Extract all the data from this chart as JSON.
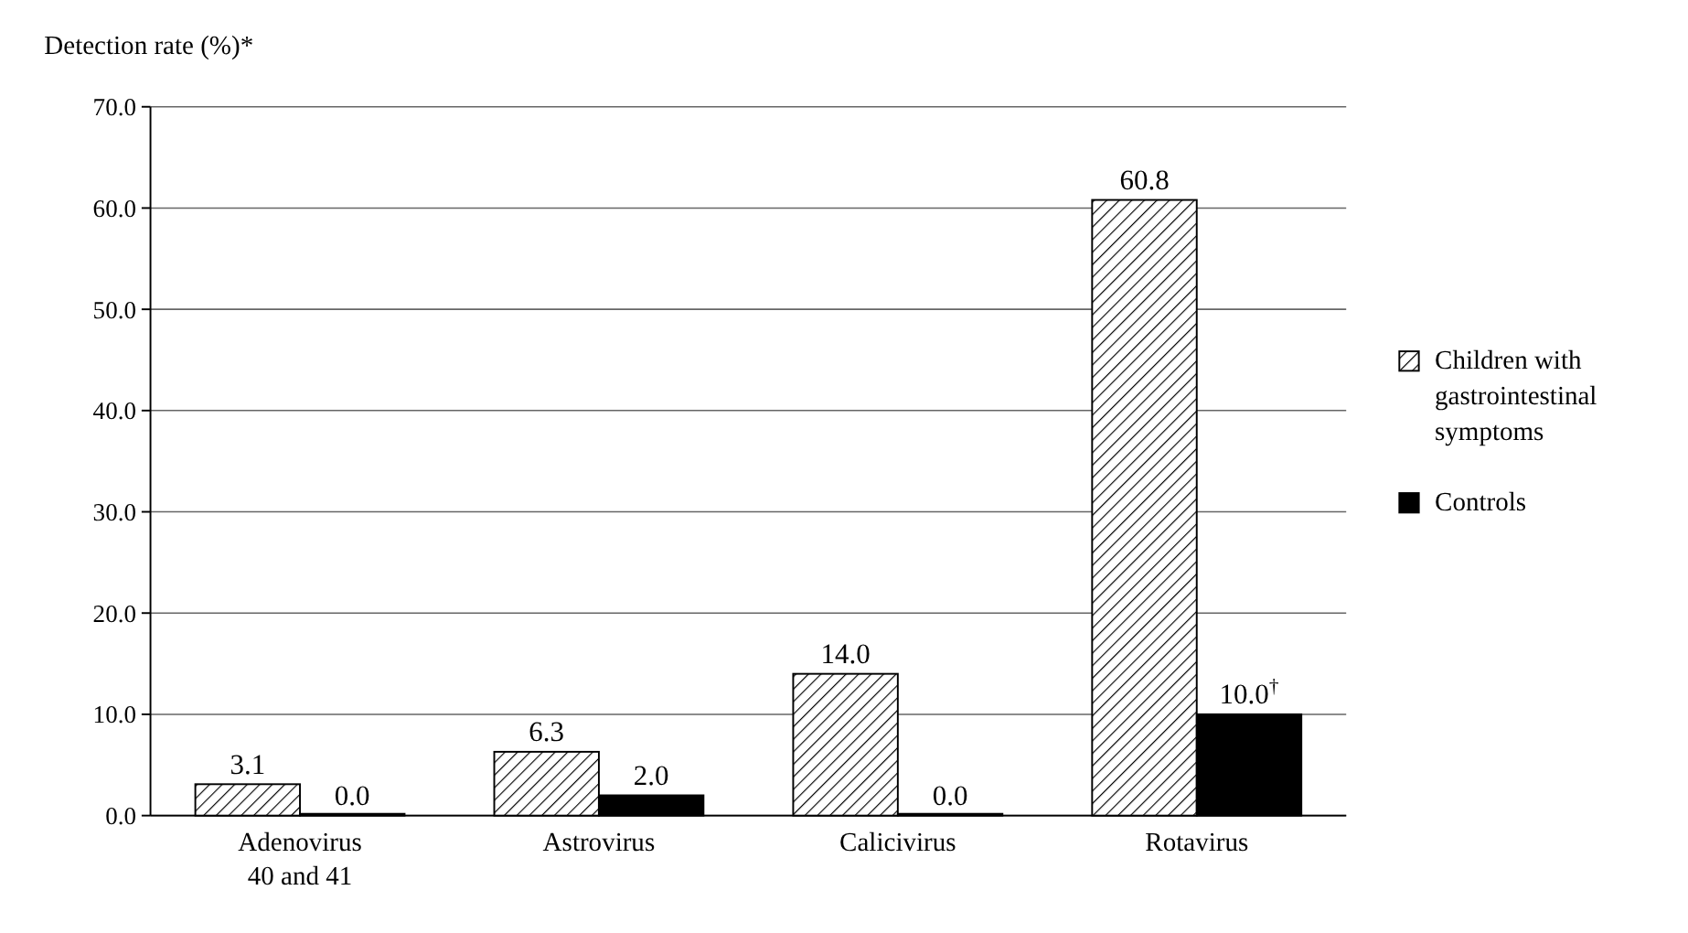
{
  "chart_data": {
    "type": "bar",
    "ylabel": "Detection rate (%)*",
    "categories": [
      "Adenovirus 40 and 41",
      "Astrovirus",
      "Calicivirus",
      "Rotavirus"
    ],
    "series": [
      {
        "name": "Children with gastrointestinal symptoms",
        "color": "#000000",
        "values": [
          3.1,
          6.3,
          14.0,
          60.8
        ],
        "value_labels": [
          "3.1",
          "6.3",
          "14.0",
          "60.8"
        ]
      },
      {
        "name": "Controls",
        "color": "#000000",
        "values": [
          0.0,
          2.0,
          0.0,
          10.0
        ],
        "value_labels": [
          "0.0",
          "2.0",
          "0.0",
          "10.0$^{†}$"
        ]
      }
    ],
    "ylim": [
      0,
      70
    ],
    "yticks": [
      {
        "value": 0,
        "label": "0.0"
      },
      {
        "value": 10,
        "label": "10.0"
      },
      {
        "value": 20,
        "label": "20.0"
      },
      {
        "value": 30,
        "label": "30.0"
      },
      {
        "value": 40,
        "label": "40.0"
      },
      {
        "value": 50,
        "label": "50.0"
      },
      {
        "value": 60,
        "label": "60.0"
      },
      {
        "value": 70,
        "label": "70.0"
      }
    ],
    "grid": "y",
    "legend": "right"
  }
}
